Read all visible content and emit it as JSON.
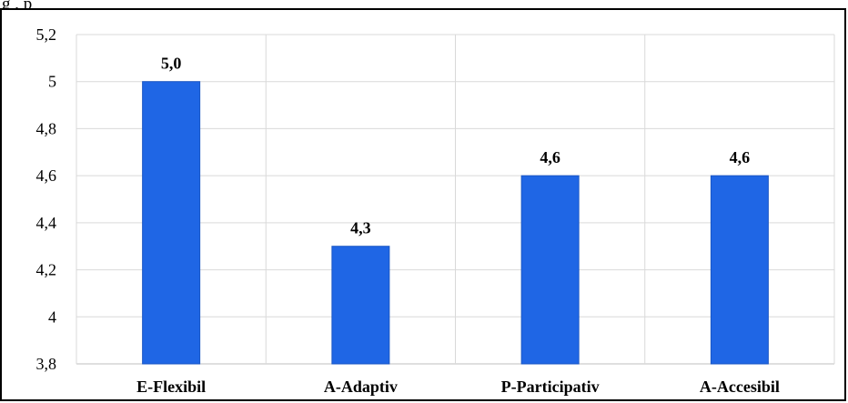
{
  "caption_fragment": "g                              , p",
  "colors": {
    "bar": "#1f66e5",
    "bar_edge": "#1a56c4",
    "grid": "#d9d9d9",
    "axis": "#bfbfbf",
    "text": "#000000"
  },
  "chart_data": {
    "type": "bar",
    "title": "",
    "xlabel": "",
    "ylabel": "",
    "categories": [
      "E-Flexibil",
      "A-Adaptiv",
      "P-Participativ",
      "A-Accesibil"
    ],
    "values": [
      5.0,
      4.3,
      4.6,
      4.6
    ],
    "data_labels": [
      "5,0",
      "4,3",
      "4,6",
      "4,6"
    ],
    "ylim": [
      3.8,
      5.2
    ],
    "yticks": [
      3.8,
      4,
      4.2,
      4.4,
      4.6,
      4.8,
      5,
      5.2
    ],
    "ytick_labels": [
      "3,8",
      "4",
      "4,2",
      "4,4",
      "4,6",
      "4,8",
      "5",
      "5,2"
    ],
    "grid": true,
    "legend": "none"
  }
}
